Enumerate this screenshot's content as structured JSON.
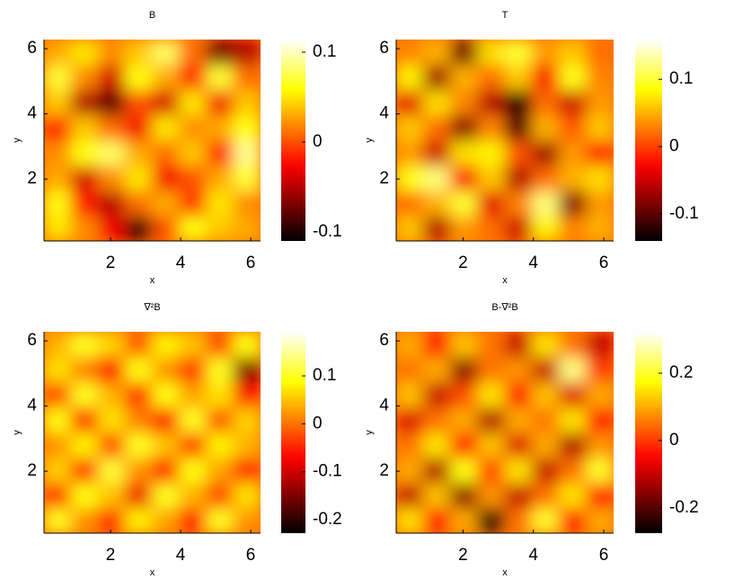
{
  "chart_data": [
    {
      "type": "heatmap",
      "title": "B",
      "xlabel": "x",
      "ylabel": "y",
      "xlim": [
        0.1,
        6.28
      ],
      "ylim": [
        0.1,
        6.28
      ],
      "xticks": [
        2,
        4,
        6
      ],
      "yticks": [
        2,
        4,
        6
      ],
      "colormap": "hot",
      "clim": [
        -0.11,
        0.114
      ],
      "cticks": [
        -0.1,
        0,
        0.1
      ],
      "z": [
        [
          0.05,
          0.02,
          -0.03,
          -0.09,
          0.0,
          0.06,
          0.04,
          0.03
        ],
        [
          0.06,
          -0.02,
          -0.05,
          0.01,
          0.03,
          -0.01,
          0.05,
          0.02
        ],
        [
          0.03,
          -0.04,
          0.02,
          0.05,
          -0.03,
          0.0,
          0.03,
          0.07
        ],
        [
          0.02,
          0.06,
          0.08,
          0.03,
          0.01,
          0.04,
          -0.02,
          0.09
        ],
        [
          -0.02,
          0.04,
          0.01,
          -0.03,
          0.05,
          0.02,
          0.03,
          0.06
        ],
        [
          0.04,
          -0.05,
          -0.08,
          0.0,
          -0.04,
          0.05,
          -0.03,
          0.04
        ],
        [
          0.07,
          0.02,
          -0.04,
          0.06,
          0.03,
          -0.02,
          0.07,
          0.01
        ],
        [
          0.03,
          0.05,
          0.02,
          0.04,
          0.08,
          0.01,
          -0.07,
          -0.05
        ]
      ]
    },
    {
      "type": "heatmap",
      "title": "T",
      "xlabel": "x",
      "ylabel": "y",
      "xlim": [
        0.1,
        6.28
      ],
      "ylim": [
        0.1,
        6.28
      ],
      "xticks": [
        2,
        4,
        6
      ],
      "yticks": [
        2,
        4,
        6
      ],
      "colormap": "hot",
      "clim": [
        -0.14,
        0.159
      ],
      "cticks": [
        -0.1,
        0,
        0.1
      ],
      "z": [
        [
          0.06,
          -0.06,
          0.04,
          0.02,
          -0.05,
          0.08,
          0.03,
          0.05
        ],
        [
          0.02,
          0.05,
          0.1,
          -0.04,
          0.03,
          0.12,
          -0.08,
          0.04
        ],
        [
          0.09,
          0.12,
          -0.03,
          0.06,
          -0.06,
          0.02,
          0.05,
          0.07
        ],
        [
          0.04,
          -0.05,
          0.07,
          0.08,
          0.01,
          -0.07,
          0.04,
          -0.02
        ],
        [
          0.06,
          0.02,
          -0.08,
          0.03,
          -0.1,
          0.05,
          0.01,
          0.06
        ],
        [
          -0.04,
          0.07,
          0.03,
          -0.06,
          -0.13,
          0.02,
          -0.05,
          0.04
        ],
        [
          0.08,
          -0.07,
          0.05,
          0.02,
          0.06,
          -0.03,
          0.09,
          0.03
        ],
        [
          0.03,
          0.05,
          -0.09,
          0.07,
          0.1,
          0.04,
          0.06,
          0.02
        ]
      ]
    },
    {
      "type": "heatmap",
      "title": "∇²B",
      "xlabel": "x",
      "ylabel": "y",
      "xlim": [
        0.1,
        6.28
      ],
      "ylim": [
        0.1,
        6.28
      ],
      "xticks": [
        2,
        4,
        6
      ],
      "yticks": [
        2,
        4,
        6
      ],
      "colormap": "hot",
      "clim": [
        -0.228,
        0.192
      ],
      "cticks": [
        -0.2,
        -0.1,
        0,
        0.1
      ],
      "z": [
        [
          0.1,
          0.02,
          -0.05,
          0.08,
          0.03,
          -0.06,
          0.1,
          0.02
        ],
        [
          -0.04,
          0.09,
          0.05,
          -0.08,
          0.1,
          0.04,
          -0.03,
          0.07
        ],
        [
          0.06,
          -0.05,
          0.11,
          0.02,
          -0.06,
          0.09,
          0.03,
          -0.05
        ],
        [
          0.02,
          0.08,
          -0.03,
          0.1,
          0.05,
          -0.04,
          0.08,
          0.04
        ],
        [
          0.09,
          -0.06,
          0.07,
          0.01,
          -0.07,
          0.1,
          -0.02,
          0.06
        ],
        [
          -0.03,
          0.1,
          0.04,
          -0.05,
          0.09,
          0.03,
          0.07,
          -0.06
        ],
        [
          0.07,
          0.01,
          -0.07,
          0.09,
          0.02,
          -0.04,
          0.1,
          -0.15
        ],
        [
          0.04,
          0.1,
          0.06,
          -0.02,
          0.08,
          0.05,
          -0.03,
          0.09
        ]
      ]
    },
    {
      "type": "heatmap",
      "title": "B-∇²B",
      "xlabel": "x",
      "ylabel": "y",
      "xlim": [
        0.1,
        6.28
      ],
      "ylim": [
        0.1,
        6.28
      ],
      "xticks": [
        2,
        4,
        6
      ],
      "yticks": [
        2,
        4,
        6
      ],
      "colormap": "hot",
      "clim": [
        -0.275,
        0.323
      ],
      "cticks": [
        -0.2,
        0,
        0.2
      ],
      "z": [
        [
          0.15,
          -0.05,
          0.1,
          -0.25,
          0.05,
          0.2,
          -0.05,
          0.1
        ],
        [
          -0.1,
          0.12,
          -0.15,
          0.08,
          -0.1,
          0.05,
          0.15,
          -0.05
        ],
        [
          0.1,
          -0.12,
          0.18,
          0.0,
          0.15,
          -0.1,
          0.05,
          0.2
        ],
        [
          0.05,
          0.15,
          -0.05,
          0.12,
          -0.08,
          0.1,
          -0.12,
          0.08
        ],
        [
          -0.08,
          0.05,
          0.1,
          -0.12,
          0.1,
          0.05,
          0.15,
          -0.05
        ],
        [
          0.12,
          -0.1,
          0.02,
          0.15,
          -0.05,
          0.12,
          -0.08,
          0.1
        ],
        [
          0.05,
          0.1,
          -0.15,
          0.05,
          0.08,
          -0.1,
          0.25,
          0.0
        ],
        [
          0.1,
          -0.05,
          0.12,
          0.05,
          -0.1,
          0.15,
          0.05,
          -0.1
        ]
      ]
    }
  ]
}
